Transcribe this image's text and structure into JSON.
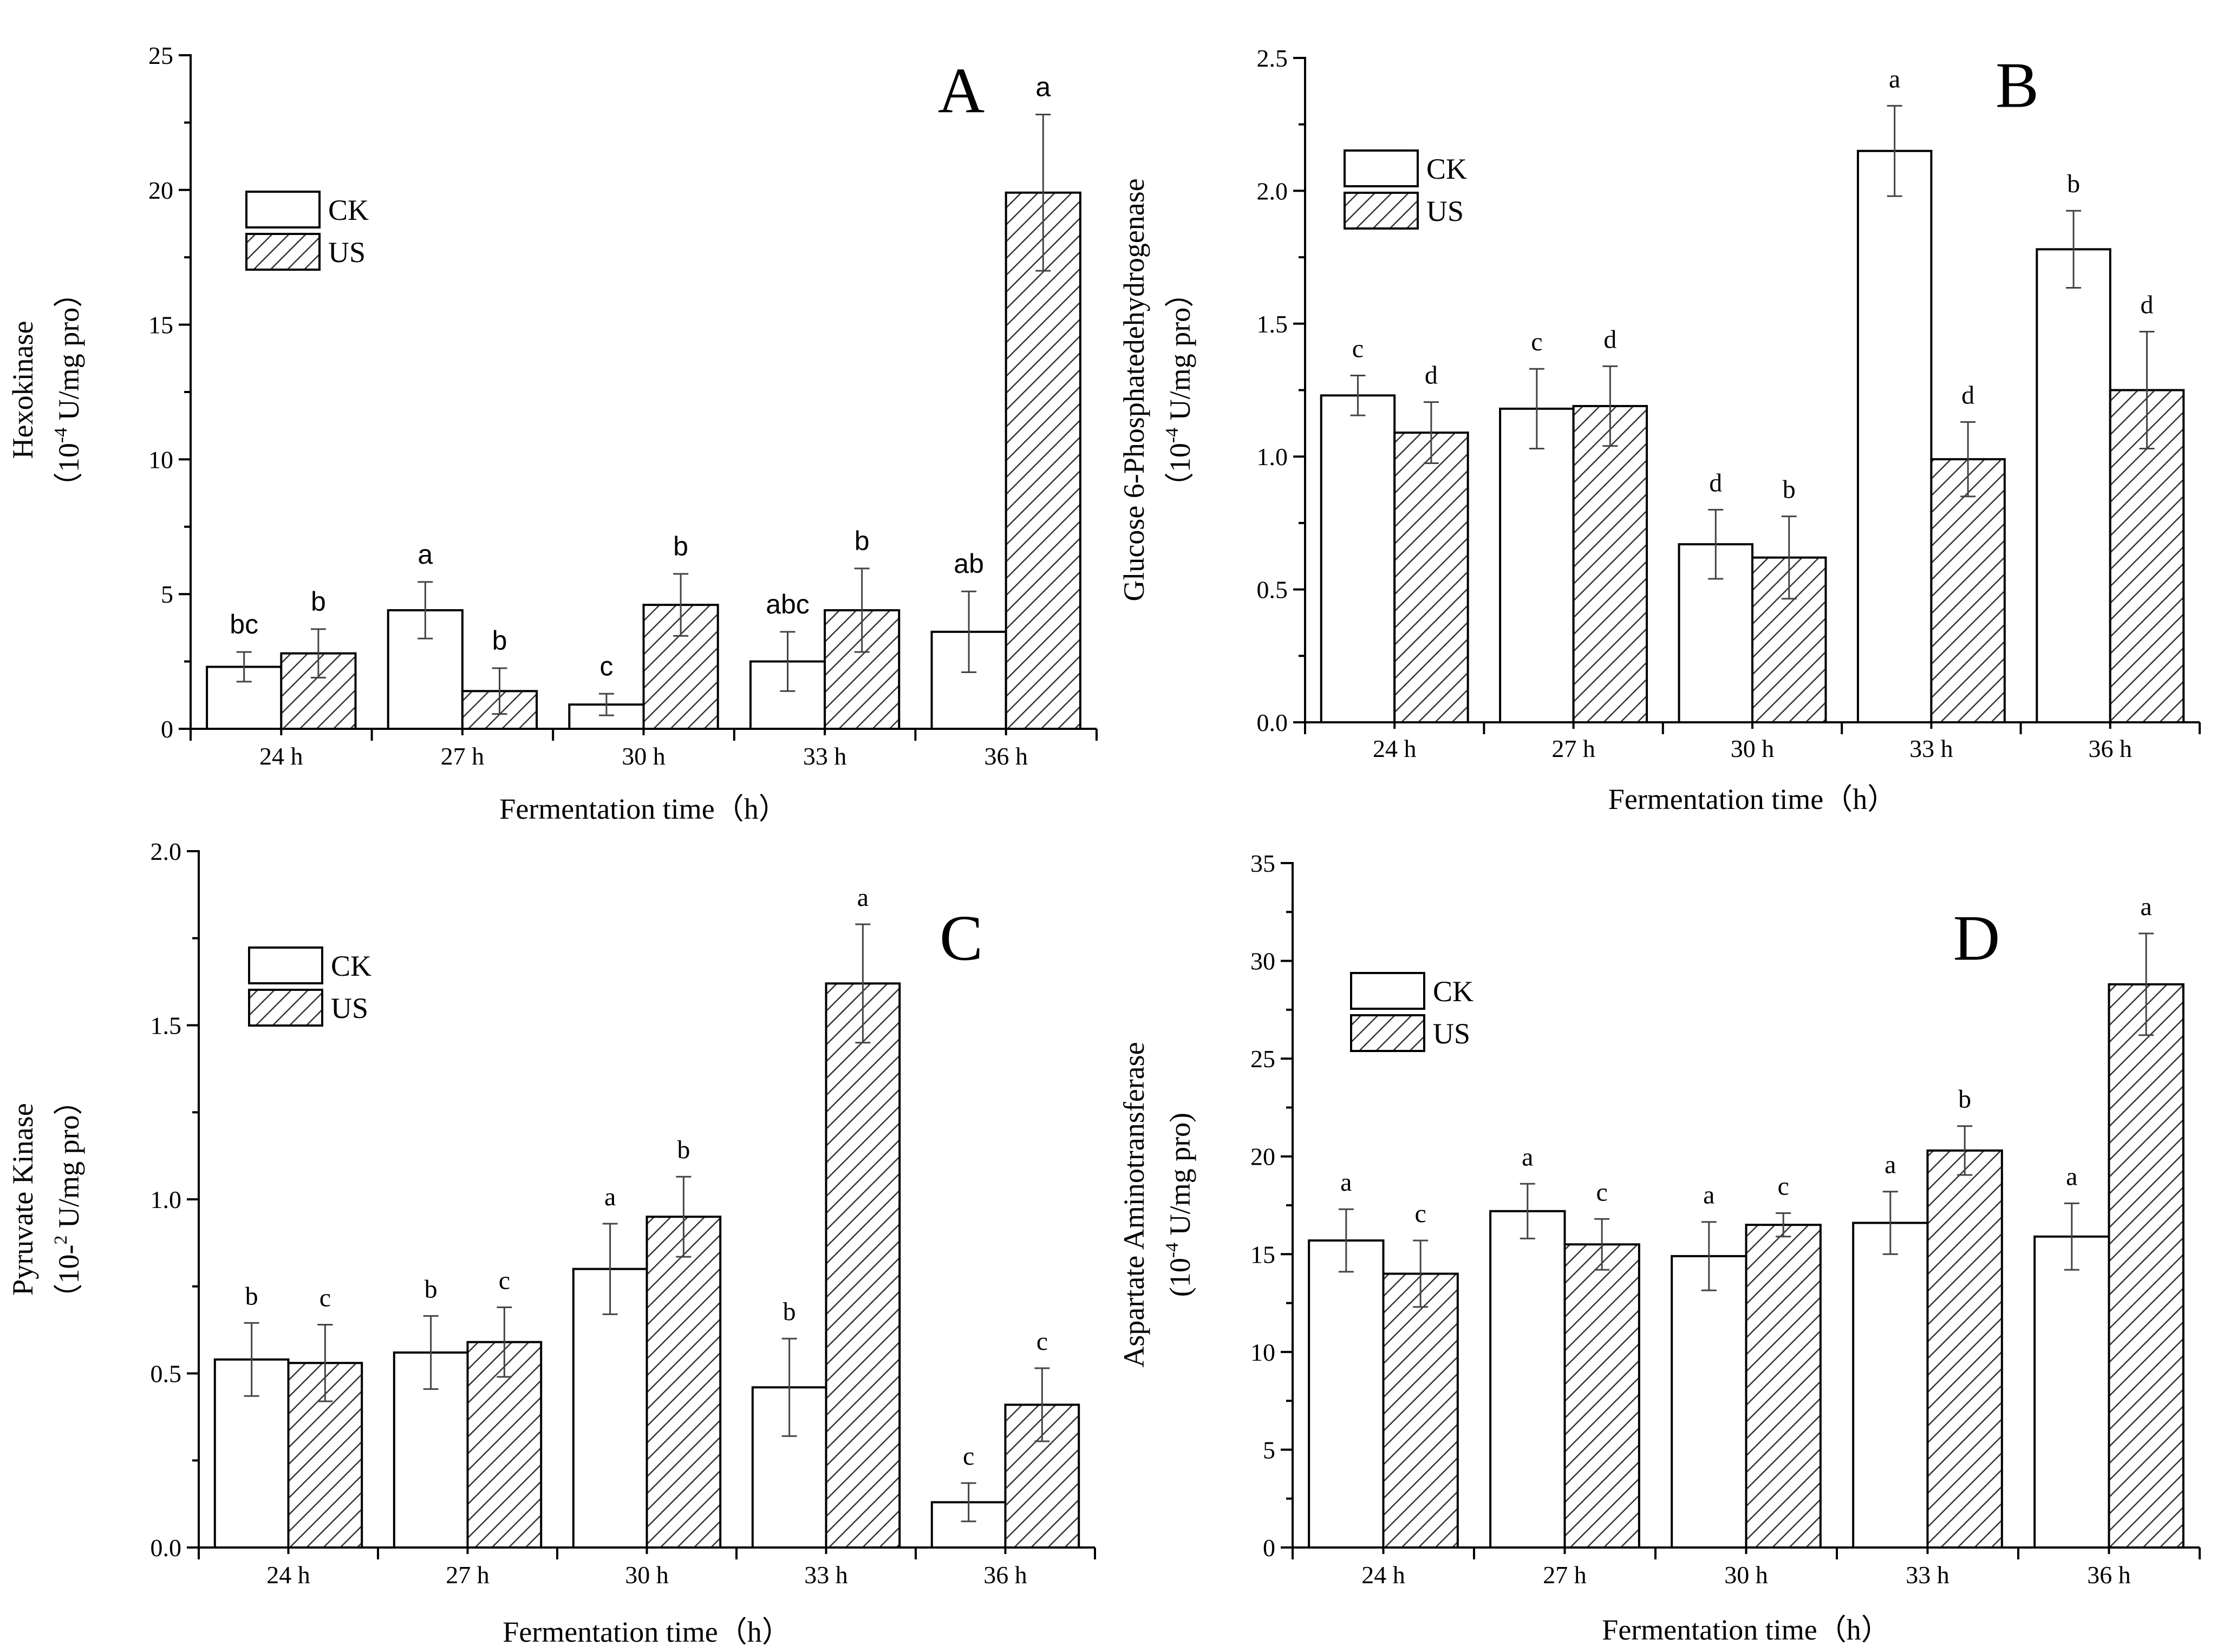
{
  "legend": {
    "ck": "CK",
    "us": "US"
  },
  "colors": {
    "stroke": "#000000",
    "ck_fill": "#ffffff",
    "us_hatch": "#333333"
  },
  "categories": [
    "24 h",
    "27 h",
    "30 h",
    "33 h",
    "36 h"
  ],
  "chart_data": [
    {
      "type": "bar",
      "panel": "A",
      "xlabel": "Fermentation time（h）",
      "ylabel_line1": "Hexokinase",
      "ylabel_line2_prefix": "（10",
      "ylabel_line2_sup": "-4",
      "ylabel_line2_suffix": " U/mg pro）",
      "ylim": [
        0,
        25
      ],
      "yticks": [
        "0",
        "5",
        "10",
        "15",
        "20",
        "25"
      ],
      "ytick_values": [
        0,
        5,
        10,
        15,
        20,
        25
      ],
      "legend_placement": "upper-left",
      "sig_font": "sans",
      "series": [
        {
          "name": "CK",
          "values": [
            2.3,
            4.4,
            0.9,
            2.5,
            3.6
          ],
          "errors": [
            0.55,
            1.05,
            0.4,
            1.1,
            1.5
          ],
          "letters": [
            "bc",
            "a",
            "c",
            "abc",
            "ab"
          ]
        },
        {
          "name": "US",
          "values": [
            2.8,
            1.4,
            4.6,
            4.4,
            19.9
          ],
          "errors": [
            0.9,
            0.85,
            1.15,
            1.55,
            2.9
          ],
          "letters": [
            "b",
            "b",
            "b",
            "b",
            "a"
          ]
        }
      ]
    },
    {
      "type": "bar",
      "panel": "B",
      "xlabel": "Fermentation time（h）",
      "ylabel_line1": "Glucose 6-Phosphatedehydrogenase",
      "ylabel_line2_prefix": "（10",
      "ylabel_line2_sup": "-4",
      "ylabel_line2_suffix": " U/mg pro）",
      "ylim": [
        0,
        2.5
      ],
      "yticks": [
        "0.0",
        "0.5",
        "1.0",
        "1.5",
        "2.0",
        "2.5"
      ],
      "ytick_values": [
        0,
        0.5,
        1.0,
        1.5,
        2.0,
        2.5
      ],
      "legend_placement": "upper-left",
      "sig_font": "serif",
      "series": [
        {
          "name": "CK",
          "values": [
            1.23,
            1.18,
            0.67,
            2.15,
            1.78
          ],
          "errors": [
            0.075,
            0.15,
            0.13,
            0.17,
            0.145
          ],
          "letters": [
            "c",
            "c",
            "d",
            "a",
            "b"
          ]
        },
        {
          "name": "US",
          "values": [
            1.09,
            1.19,
            0.62,
            0.99,
            1.25
          ],
          "errors": [
            0.115,
            0.15,
            0.155,
            0.14,
            0.22
          ],
          "letters": [
            "d",
            "d",
            "b",
            "d",
            "d"
          ]
        }
      ]
    },
    {
      "type": "bar",
      "panel": "C",
      "xlabel": "Fermentation time（h）",
      "ylabel_line1": "Pyruvate Kinase",
      "ylabel_line2_prefix": "（10-",
      "ylabel_line2_sup": "2",
      "ylabel_line2_suffix": " U/mg pro）",
      "ylim": [
        0,
        2.0
      ],
      "yticks": [
        "0.0",
        "0.5",
        "1.0",
        "1.5",
        "2.0"
      ],
      "ytick_values": [
        0,
        0.5,
        1.0,
        1.5,
        2.0
      ],
      "legend_placement": "upper-left",
      "sig_font": "serif",
      "series": [
        {
          "name": "CK",
          "values": [
            0.54,
            0.56,
            0.8,
            0.46,
            0.13
          ],
          "errors": [
            0.105,
            0.105,
            0.13,
            0.14,
            0.055
          ],
          "letters": [
            "b",
            "b",
            "a",
            "b",
            "c"
          ]
        },
        {
          "name": "US",
          "values": [
            0.53,
            0.59,
            0.95,
            1.62,
            0.41
          ],
          "errors": [
            0.11,
            0.1,
            0.115,
            0.17,
            0.105
          ],
          "letters": [
            "c",
            "c",
            "b",
            "a",
            "c"
          ]
        }
      ]
    },
    {
      "type": "bar",
      "panel": "D",
      "xlabel": "Fermentation time（h）",
      "ylabel_line1": "Aspartate Aminotransferase",
      "ylabel_line2_prefix": "(10",
      "ylabel_line2_sup": "-4",
      "ylabel_line2_suffix": " U/mg pro)",
      "ylim": [
        0,
        35
      ],
      "yticks": [
        "0",
        "5",
        "10",
        "15",
        "20",
        "25",
        "30",
        "35"
      ],
      "ytick_values": [
        0,
        5,
        10,
        15,
        20,
        25,
        30,
        35
      ],
      "legend_placement": "upper-left",
      "sig_font": "serif",
      "series": [
        {
          "name": "CK",
          "values": [
            15.7,
            17.2,
            14.9,
            16.6,
            15.9
          ],
          "errors": [
            1.6,
            1.4,
            1.75,
            1.6,
            1.7
          ],
          "letters": [
            "a",
            "a",
            "a",
            "a",
            "a"
          ]
        },
        {
          "name": "US",
          "values": [
            14.0,
            15.5,
            16.5,
            20.3,
            28.8
          ],
          "errors": [
            1.7,
            1.3,
            0.6,
            1.25,
            2.6
          ],
          "letters": [
            "c",
            "c",
            "c",
            "b",
            "a"
          ]
        }
      ]
    }
  ]
}
